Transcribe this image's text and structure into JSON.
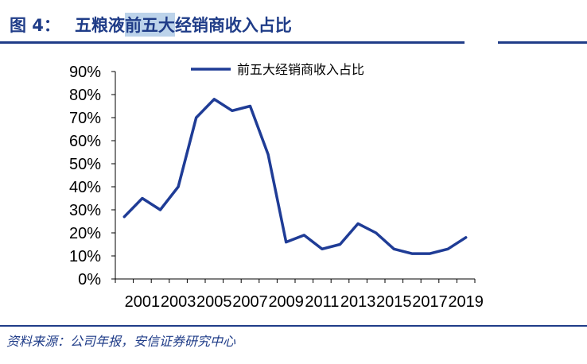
{
  "header": {
    "figure_label": "图 4：",
    "title_part1": "五粮液",
    "title_highlight": "前五大",
    "title_part2": "经销商收入占比"
  },
  "footer": {
    "source": "资料来源：公司年报，安信证券研究中心"
  },
  "chart_data": {
    "type": "line",
    "title": "",
    "xlabel": "",
    "ylabel": "",
    "x": [
      2000,
      2001,
      2002,
      2003,
      2004,
      2005,
      2006,
      2007,
      2008,
      2009,
      2010,
      2011,
      2012,
      2013,
      2014,
      2015,
      2016,
      2017,
      2018,
      2019
    ],
    "x_tick_labels": [
      "2001",
      "2003",
      "2005",
      "2007",
      "2009",
      "2011",
      "2013",
      "2015",
      "2017",
      "2019"
    ],
    "y_tick_labels": [
      "0%",
      "10%",
      "20%",
      "30%",
      "40%",
      "50%",
      "60%",
      "70%",
      "80%",
      "90%"
    ],
    "ylim": [
      0,
      90
    ],
    "grid": false,
    "legend_position": "top",
    "series": [
      {
        "name": "前五大经销商收入占比",
        "color": "#1f3c96",
        "values": [
          27,
          35,
          30,
          40,
          70,
          78,
          73,
          75,
          54,
          16,
          19,
          13,
          15,
          24,
          20,
          13,
          11,
          11,
          13,
          18
        ]
      }
    ]
  }
}
